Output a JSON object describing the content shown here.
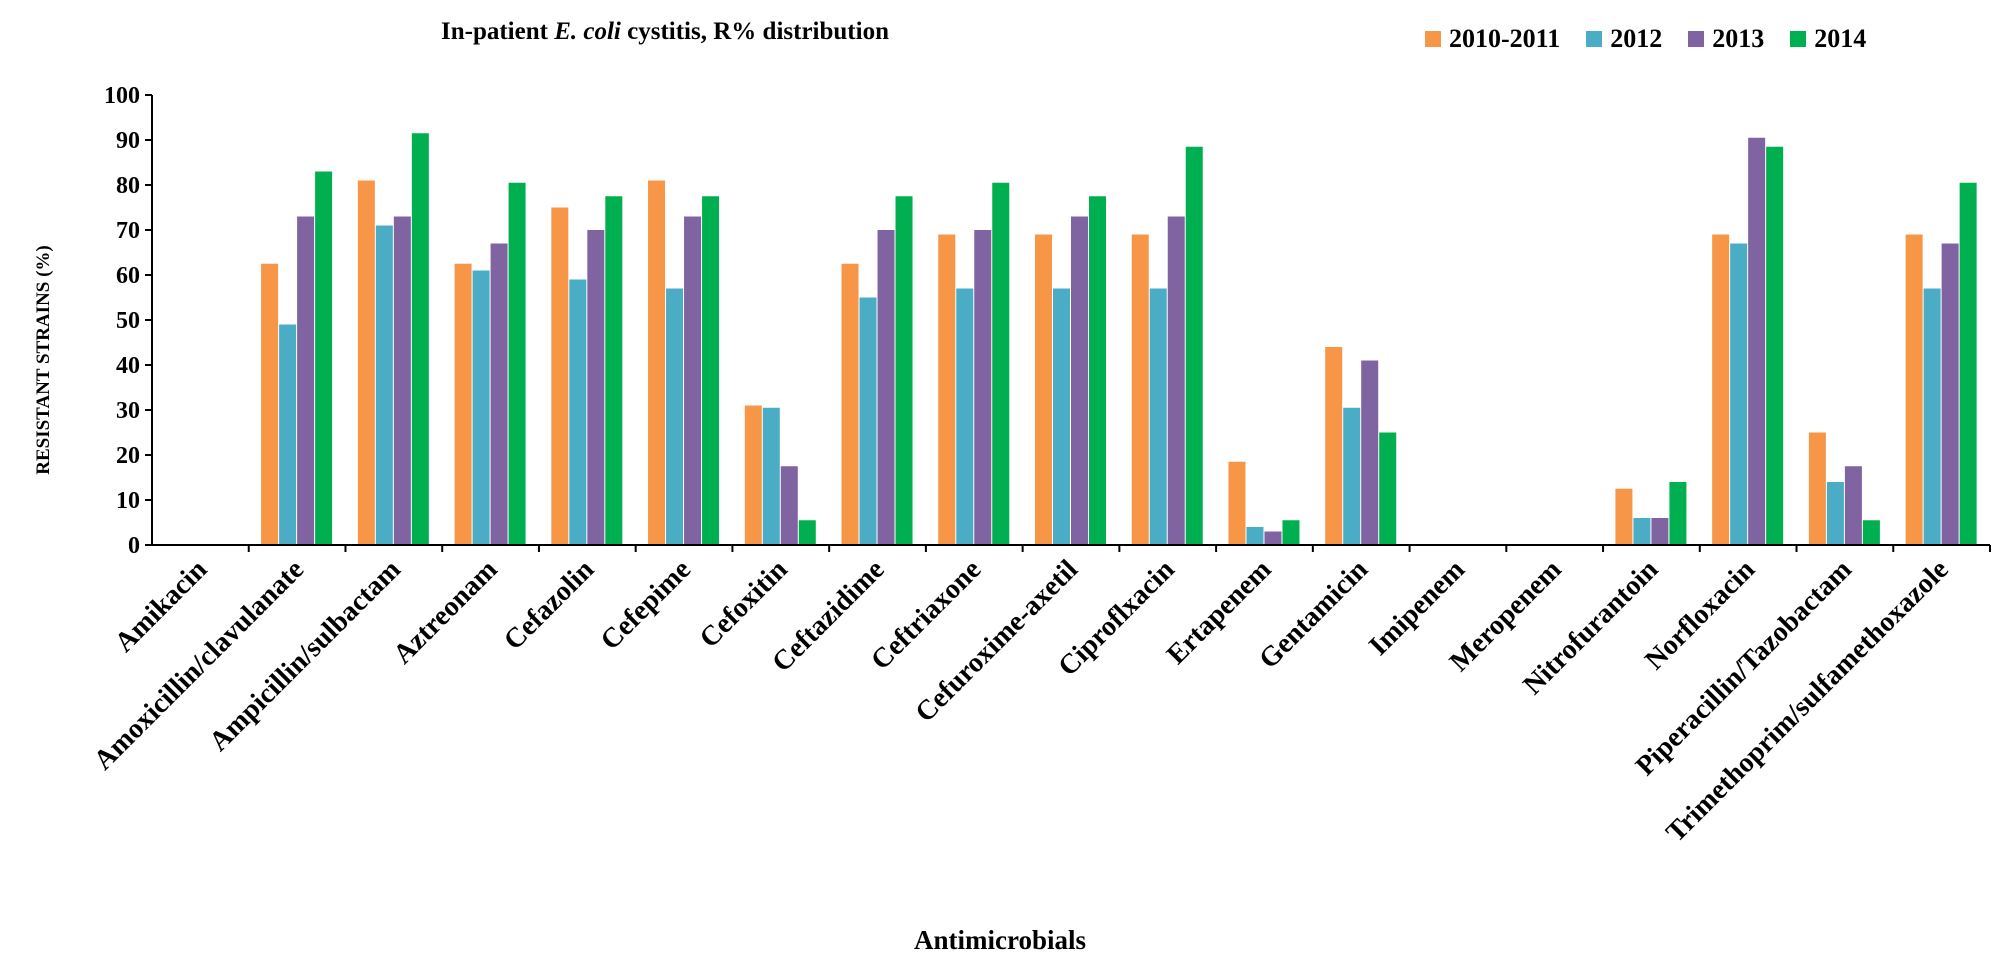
{
  "chart_data": {
    "type": "bar",
    "title_prefix": "In-patient ",
    "title_italic": "E. coli",
    "title_suffix": " cystitis, R% distribution",
    "xlabel": "Antimicrobials",
    "ylabel": "RESISTANT STRAINS (%)",
    "ylim": [
      0,
      100
    ],
    "yticks": [
      0,
      10,
      20,
      30,
      40,
      50,
      60,
      70,
      80,
      90,
      100
    ],
    "legend_position": "top-right",
    "categories": [
      "Amikacin",
      "Amoxicillin/clavulanate",
      "Ampicillin/sulbactam",
      "Aztreonam",
      "Cefazolin",
      "Cefepime",
      "Cefoxitin",
      "Ceftazidime",
      "Ceftriaxone",
      "Cefuroxime-axetil",
      "Ciproflxacin",
      "Ertapenem",
      "Gentamicin",
      "Imipenem",
      "Meropenem",
      "Nitrofurantoin",
      "Norfloxacin",
      "Piperacillin/Tazobactam",
      "Trimethoprim/sulfamethoxazole"
    ],
    "series": [
      {
        "name": "2010-2011",
        "color": "#F79646",
        "values": [
          0,
          62.5,
          81,
          62.5,
          75,
          81,
          31,
          62.5,
          69,
          69,
          69,
          18.5,
          44,
          0,
          0,
          12.5,
          69,
          25,
          69
        ]
      },
      {
        "name": "2012",
        "color": "#4BACC6",
        "values": [
          0,
          49,
          71,
          61,
          59,
          57,
          30.5,
          55,
          57,
          57,
          57,
          4,
          30.5,
          0,
          0,
          6,
          67,
          14,
          57
        ]
      },
      {
        "name": "2013",
        "color": "#8064A2",
        "values": [
          0,
          73,
          73,
          67,
          70,
          73,
          17.5,
          70,
          70,
          73,
          73,
          3,
          41,
          0,
          0,
          6,
          90.5,
          17.5,
          67
        ]
      },
      {
        "name": "2014",
        "color": "#00B050",
        "values": [
          0,
          83,
          91.5,
          80.5,
          77.5,
          77.5,
          5.5,
          77.5,
          80.5,
          77.5,
          88.5,
          5.5,
          25,
          0,
          0,
          14,
          88.5,
          5.5,
          80.5
        ]
      }
    ]
  }
}
